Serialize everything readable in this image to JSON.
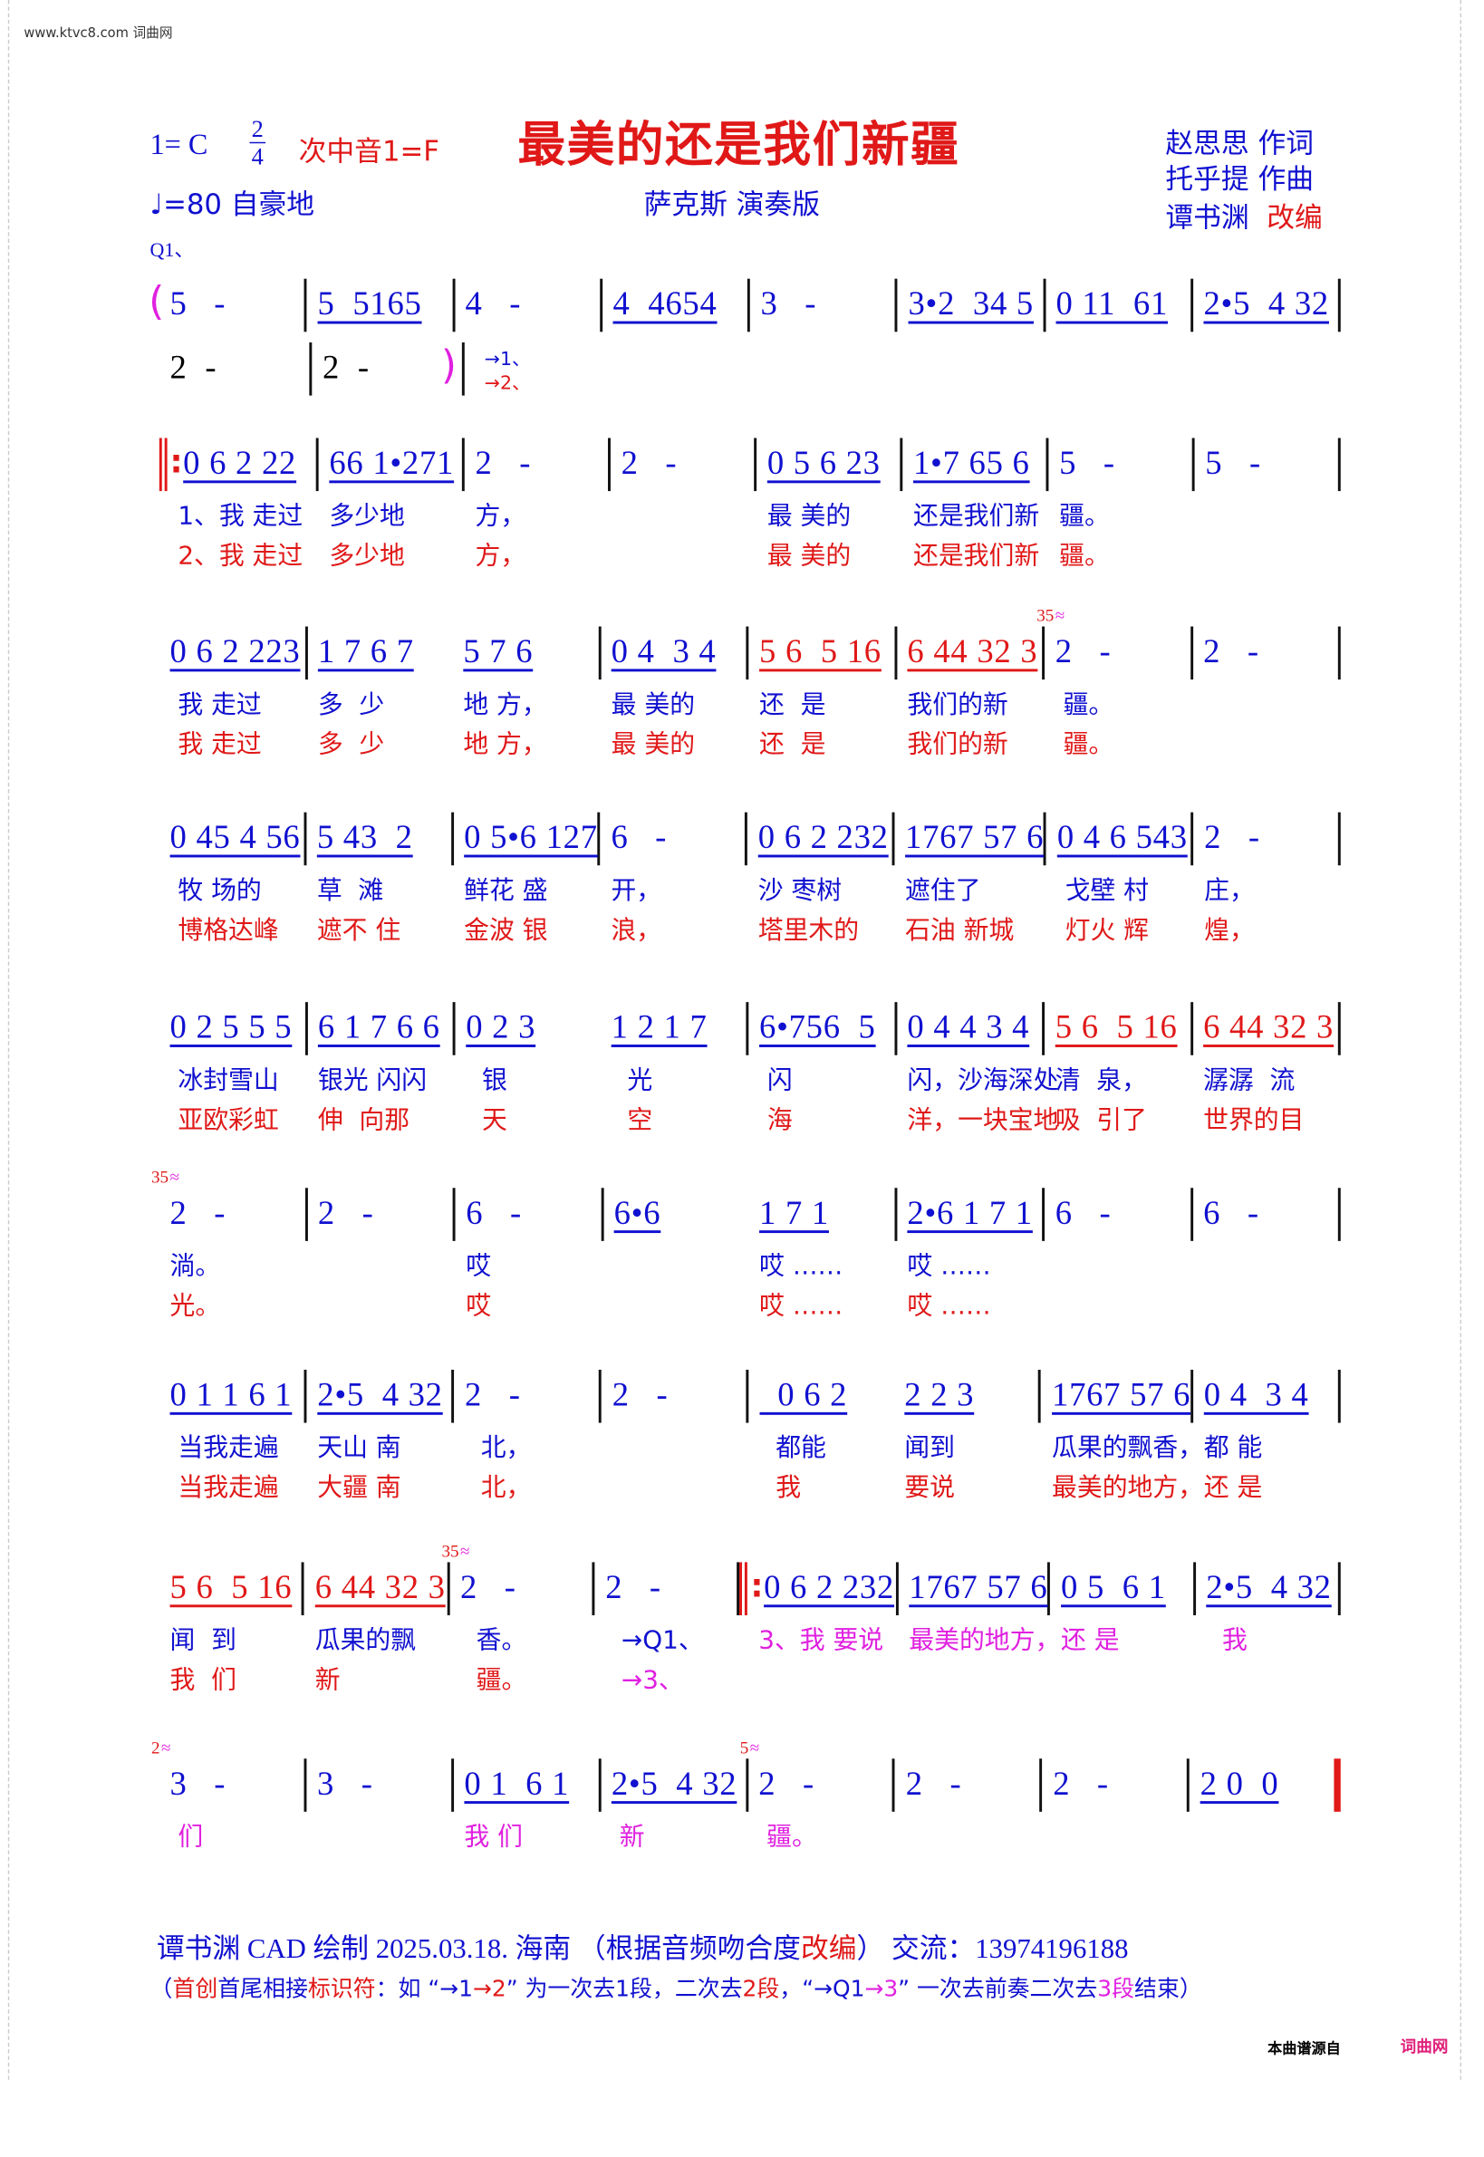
{
  "site_header": "www.ktvc8.com 词曲网",
  "header": {
    "key": "1= C",
    "time_top": "2",
    "time_bottom": "4",
    "secondary_key": "次中音1=F",
    "title": "最美的还是我们新疆",
    "tempo": "♩=80  自豪地",
    "performance": "萨克斯 演奏版",
    "lyricist": "赵思思  作词",
    "composer": "托乎提  作曲",
    "arranger_name": "谭书渊",
    "arranger_role": "改编",
    "intro_mark": "Q1、"
  },
  "colors": {
    "notes": "#1010d0",
    "accent": "#e01818",
    "verse3": "#e020e0"
  },
  "intro_tail": {
    "measures": [
      "2  -",
      "2  -"
    ],
    "paren_open": "(",
    "paren_close": ")",
    "jump1": "→1、",
    "jump2": "→2、"
  },
  "systems": [
    {
      "cells": [
        {
          "n": "5   -"
        },
        {
          "n": "5  5165"
        },
        {
          "n": "4   -"
        },
        {
          "n": "4  4654"
        },
        {
          "n": "3   -"
        },
        {
          "n": "3•2  34 5"
        },
        {
          "n": "0 11  61"
        },
        {
          "n": "2•5  4 32"
        }
      ]
    },
    {
      "cells": [
        {
          "n": "0 6 2 22",
          "bar": "rs",
          "l1": "1、我 走过",
          "l2": "2、我 走过"
        },
        {
          "n": "66 1•271",
          "l1": "多少地",
          "l2": "多少地"
        },
        {
          "n": "2   -",
          "l1": "方，",
          "l2": "方，"
        },
        {
          "n": "2   -"
        },
        {
          "n": "0 5 6 23",
          "l1": "最 美的",
          "l2": "最 美的"
        },
        {
          "n": "1•7 65 6",
          "l1": "还是我们新",
          "l2": "还是我们新"
        },
        {
          "n": "5   -",
          "l1": "疆。",
          "l2": "疆。"
        },
        {
          "n": "5   -"
        }
      ]
    },
    {
      "cells": [
        {
          "n": "0 6 2 223",
          "l1": " 我 走过",
          "l2": " 我 走过"
        },
        {
          "n": "1 7 6 7",
          "nobar": true,
          "l1": "多  少",
          "l2": "多  少"
        },
        {
          "n": "5 7 6",
          "l1": "地 方，",
          "l2": "地 方，"
        },
        {
          "n": "0 4  3 4",
          "l1": "最 美的",
          "l2": "最 美的"
        },
        {
          "n": "5 6  5 16",
          "color": "red",
          "l1": "还  是",
          "l2": "还  是"
        },
        {
          "n": "6 44 32 3",
          "color": "red",
          "l1": "我们的新",
          "l2": "我们的新"
        },
        {
          "n": "2   -",
          "grace": "35",
          "l1": " 疆。",
          "l2": " 疆。"
        },
        {
          "n": "2   -"
        }
      ]
    },
    {
      "cells": [
        {
          "n": "0 45 4 56",
          "l1": " 牧 场的",
          "l2": " 博格达峰"
        },
        {
          "n": "5 43  2",
          "l1": "草  滩",
          "l2": "遮不 住"
        },
        {
          "n": "0 5•6 127",
          "l1": "鲜花 盛",
          "l2": "金波 银"
        },
        {
          "n": "6   -",
          "l1": "开，",
          "l2": "浪，"
        },
        {
          "n": "0 6 2 232",
          "l1": "沙 枣树",
          "l2": "塔里木的"
        },
        {
          "n": "1767 57 6",
          "l1": "遮住了",
          "l2": "石油 新城"
        },
        {
          "n": "0 4 6 543",
          "l1": " 戈壁 村",
          "l2": " 灯火 辉"
        },
        {
          "n": "2   -",
          "l1": "庄，",
          "l2": "煌，"
        }
      ]
    },
    {
      "cells": [
        {
          "n": "0 2 5 5 5",
          "l1": " 冰封雪山",
          "l2": " 亚欧彩虹"
        },
        {
          "n": "6 1 7 6 6",
          "l1": "银光 闪闪",
          "l2": "伸  向那"
        },
        {
          "n": "0 2 3",
          "nobar": true,
          "l1": "  银",
          "l2": "  天"
        },
        {
          "n": "1 2 1 7",
          "l1": "  光",
          "l2": "  空"
        },
        {
          "n": "6•756  5",
          "l1": " 闪",
          "l2": " 海"
        },
        {
          "n": "0 4 4 3 4",
          "l1": "闪，沙海深处",
          "l2": "洋，一块宝地"
        },
        {
          "n": "5 6  5 16",
          "color": "red",
          "l1": "清  泉，",
          "l2": "吸  引了"
        },
        {
          "n": "6 44 32 3",
          "color": "red",
          "l1": "潺潺  流",
          "l2": "世界的目"
        }
      ]
    },
    {
      "cells": [
        {
          "n": "2   -",
          "grace": "35",
          "l1": "淌。",
          "l2": "光。"
        },
        {
          "n": "2   -"
        },
        {
          "n": "6   -",
          "l1": "哎",
          "l2": "哎"
        },
        {
          "n": "6•6",
          "nobar": true
        },
        {
          "n": "1 7 1",
          "l1": "哎 ……",
          "l2": "哎 ……"
        },
        {
          "n": "2•6 1 7 1",
          "l1": "哎 ……",
          "l2": "哎 ……"
        },
        {
          "n": "6   -"
        },
        {
          "n": "6   -"
        }
      ]
    },
    {
      "cells": [
        {
          "n": "0 1 1 6 1",
          "l1": " 当我走遍",
          "l2": " 当我走遍"
        },
        {
          "n": "2•5  4 32",
          "l1": "天山 南",
          "l2": "大疆 南"
        },
        {
          "n": "2   -",
          "l1": "  北，",
          "l2": "  北，"
        },
        {
          "n": "2   -"
        },
        {
          "n": "  0 6 2",
          "nobar": true,
          "l1": "  都能",
          "l2": "  我"
        },
        {
          "n": "2 2 3",
          "l1": "闻到",
          "l2": "要说"
        },
        {
          "n": "1767 57 6",
          "l1": "瓜果的飘香，",
          "l2": "最美的地方，"
        },
        {
          "n": "0 4  3 4",
          "l1": "都 能",
          "l2": "还 是"
        }
      ]
    },
    {
      "cells": [
        {
          "n": "5 6  5 16",
          "color": "red",
          "l1": "闻  到",
          "l2": "我  们"
        },
        {
          "n": "6 44 32 3",
          "color": "red",
          "l1": "瓜果的飘",
          "l2": "新"
        },
        {
          "n": "2   -",
          "grace": "35",
          "l1": "  香。",
          "l2": "  疆。"
        },
        {
          "n": "2   -",
          "l1": "  →Q1、",
          "l2": "  →3、",
          "l2c": "mag"
        },
        {
          "n": "0 6 2 232",
          "bar": "rs",
          "l1": "3、我 要说",
          "l1c": "mag"
        },
        {
          "n": "1767 57 6",
          "l1": "最美的地方，",
          "l1c": "mag"
        },
        {
          "n": "0 5  6 1",
          "l1": "还 是",
          "l1c": "mag"
        },
        {
          "n": "2•5  4 32",
          "l1": "  我",
          "l1c": "mag"
        }
      ]
    },
    {
      "cells": [
        {
          "n": "3   -",
          "grace": "2",
          "l1": " 们",
          "l1c": "mag"
        },
        {
          "n": "3   -"
        },
        {
          "n": "0 1  6 1",
          "l1": "我 们",
          "l1c": "mag"
        },
        {
          "n": "2•5  4 32",
          "l1": " 新",
          "l1c": "mag"
        },
        {
          "n": "2   -",
          "grace": "5",
          "l1": " 疆。",
          "l1c": "mag"
        },
        {
          "n": "2   -"
        },
        {
          "n": "2   -"
        },
        {
          "n": "2 0  0",
          "bar": "end"
        }
      ]
    }
  ],
  "footer": {
    "line1_a": "谭书渊   CAD 绘制   2025.03.18. 海南 （根据音频吻合度",
    "line1_b": "改编",
    "line1_c": "） 交流：13974196188",
    "line2_a": "（",
    "line2_b": "首创",
    "line2_c": "首尾相接",
    "line2_d": "标识符",
    "line2_e": "：如 “→1",
    "line2_f": "→2",
    "line2_g": "” 为一次去1段，二次去",
    "line2_h": "2段",
    "line2_i": "，“→Q1",
    "line2_j": "→3",
    "line2_k": "” 一次去前奏二次去",
    "line2_l": "3段",
    "line2_m": "结束）",
    "source_label": "本曲谱源自",
    "source_site": "词曲网"
  }
}
